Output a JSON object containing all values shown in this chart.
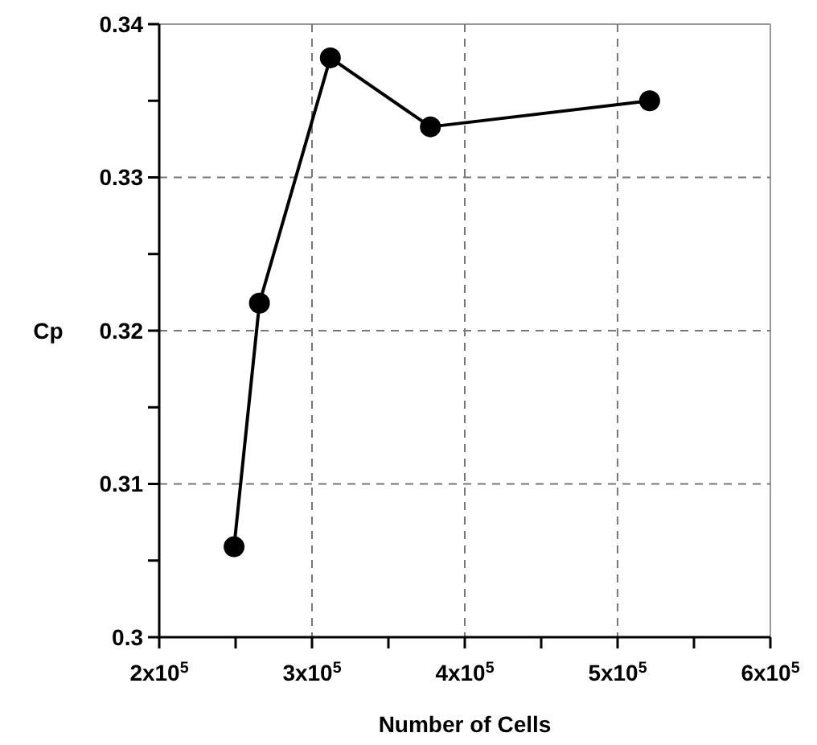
{
  "chart_data": {
    "type": "line",
    "xlabel": "Number of Cells",
    "ylabel": "Cp",
    "x": [
      249000,
      265600,
      312000,
      377500,
      521000
    ],
    "series": [
      {
        "color": "#000000",
        "values": [
          0.3059,
          0.3218,
          0.3378,
          0.3333,
          0.335
        ]
      }
    ],
    "xlim": [
      200000,
      600000
    ],
    "ylim": [
      0.3,
      0.34
    ],
    "xticks": [
      {
        "value": 200000,
        "label": "2x10$^{5}$"
      },
      {
        "value": 250000,
        "label": null
      },
      {
        "value": 300000,
        "label": "3x10$^{5}$"
      },
      {
        "value": 350000,
        "label": null
      },
      {
        "value": 400000,
        "label": "4x10$^{5}$"
      },
      {
        "value": 450000,
        "label": null
      },
      {
        "value": 500000,
        "label": "5x10$^{5}$"
      },
      {
        "value": 550000,
        "label": null
      },
      {
        "value": 600000,
        "label": "6x10$^{5}$"
      }
    ],
    "yticks": [
      {
        "value": 0.3,
        "label": "0.3"
      },
      {
        "value": 0.305,
        "label": null
      },
      {
        "value": 0.31,
        "label": "0.31"
      },
      {
        "value": 0.315,
        "label": null
      },
      {
        "value": 0.32,
        "label": "0.32"
      },
      {
        "value": 0.325,
        "label": null
      },
      {
        "value": 0.33,
        "label": "0.33"
      },
      {
        "value": 0.335,
        "label": null
      },
      {
        "value": 0.34,
        "label": "0.34"
      }
    ],
    "grid": true,
    "marker": "circle",
    "line_style": "solid"
  }
}
